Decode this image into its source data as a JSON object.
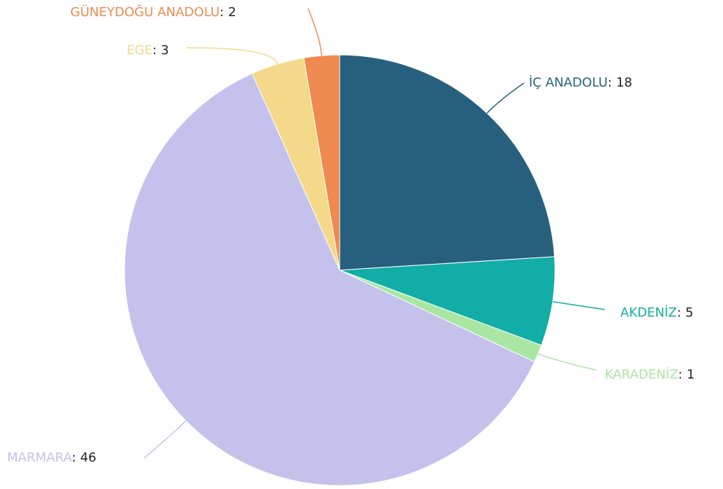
{
  "chart_data": {
    "type": "pie",
    "categories": [
      "İÇ ANADOLU",
      "AKDENİZ",
      "KARADENİZ",
      "MARMARA",
      "EGE",
      "GÜNEYDOĞU ANADOLU"
    ],
    "values": [
      18,
      5,
      1,
      46,
      3,
      2
    ],
    "colors": [
      "#27607f",
      "#12ada6",
      "#a9e6a4",
      "#c4c2ec",
      "#f4d98a",
      "#ef8a50"
    ],
    "separator": ":"
  }
}
